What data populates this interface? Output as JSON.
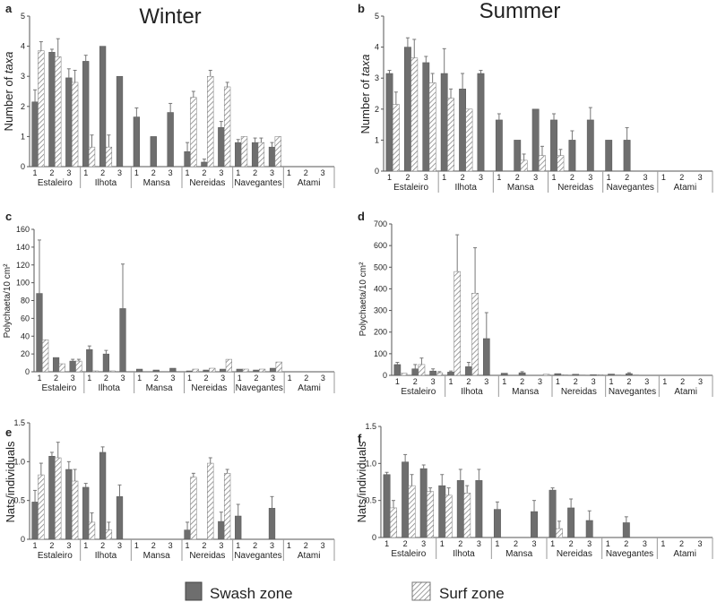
{
  "column_titles": {
    "left": "Winter",
    "right": "Summer"
  },
  "legend": {
    "swash": "Swash zone",
    "surf": "Surf zone"
  },
  "colors": {
    "swash": "#6e6e6e",
    "surf_stroke": "#777777",
    "axis": "#555555"
  },
  "chart_data": [
    {
      "panel": "a",
      "type": "bar",
      "season": "Winter",
      "ylabel": "Number of taxa",
      "ylabel_style": "plain-italic-last",
      "ylim": [
        0,
        5
      ],
      "yticks": [
        0,
        1,
        2,
        3,
        4,
        5
      ],
      "sites": [
        "Estaleiro",
        "Ilhota",
        "Mansa",
        "Nereidas",
        "Navegantes",
        "Atami"
      ],
      "subsites": [
        "1",
        "2",
        "3"
      ],
      "series": [
        {
          "name": "Swash zone",
          "values": [
            [
              2.15,
              3.8,
              2.95
            ],
            [
              3.5,
              4.0,
              3.0
            ],
            [
              1.65,
              1.0,
              1.8
            ],
            [
              0.5,
              0.15,
              1.3
            ],
            [
              0.8,
              0.8,
              0.65
            ],
            [
              0,
              0,
              0
            ]
          ],
          "errors": [
            [
              0.4,
              0.1,
              0.3
            ],
            [
              0.2,
              0,
              0
            ],
            [
              0.3,
              0,
              0.3
            ],
            [
              0.3,
              0.1,
              0.2
            ],
            [
              0.1,
              0.15,
              0.15
            ],
            [
              0,
              0,
              0
            ]
          ]
        },
        {
          "name": "Surf zone",
          "values": [
            [
              3.85,
              3.65,
              2.8
            ],
            [
              0.65,
              0.65,
              0
            ],
            [
              0,
              0,
              0
            ],
            [
              2.3,
              3.0,
              2.65
            ],
            [
              1.0,
              0.8,
              1.0
            ],
            [
              0,
              0,
              0
            ]
          ],
          "errors": [
            [
              0.3,
              0.6,
              0.4
            ],
            [
              0.4,
              0.4,
              0
            ],
            [
              0,
              0,
              0
            ],
            [
              0.2,
              0.2,
              0.15
            ],
            [
              0,
              0.15,
              0
            ],
            [
              0,
              0,
              0
            ]
          ]
        }
      ]
    },
    {
      "panel": "b",
      "type": "bar",
      "season": "Summer",
      "ylabel": "Number of taxa",
      "ylabel_style": "plain-italic-last",
      "ylim": [
        0,
        5
      ],
      "yticks": [
        0,
        1,
        2,
        3,
        4,
        5
      ],
      "sites": [
        "Estaleiro",
        "Ilhota",
        "Mansa",
        "Nereidas",
        "Navegantes",
        "Atami"
      ],
      "subsites": [
        "1",
        "2",
        "3"
      ],
      "series": [
        {
          "name": "Swash zone",
          "values": [
            [
              3.15,
              4.0,
              3.5
            ],
            [
              3.15,
              2.65,
              3.15
            ],
            [
              1.65,
              1.0,
              2.0
            ],
            [
              1.65,
              1.0,
              1.65
            ],
            [
              1.0,
              1.0,
              0
            ],
            [
              0,
              0,
              0
            ]
          ],
          "errors": [
            [
              0.1,
              0.3,
              0.2
            ],
            [
              0.8,
              0.5,
              0.1
            ],
            [
              0.2,
              0,
              0
            ],
            [
              0.2,
              0.3,
              0.4
            ],
            [
              0,
              0.4,
              0
            ],
            [
              0,
              0,
              0
            ]
          ]
        },
        {
          "name": "Surf zone",
          "values": [
            [
              2.15,
              3.65,
              2.85
            ],
            [
              2.35,
              2.0,
              0
            ],
            [
              0,
              0.35,
              0.5
            ],
            [
              0.5,
              0,
              0
            ],
            [
              0,
              0,
              0
            ],
            [
              0,
              0,
              0
            ]
          ],
          "errors": [
            [
              0.4,
              0.6,
              0.3
            ],
            [
              0.3,
              0,
              0
            ],
            [
              0,
              0.2,
              0.3
            ],
            [
              0.2,
              0,
              0
            ],
            [
              0,
              0,
              0
            ],
            [
              0,
              0,
              0
            ]
          ]
        }
      ]
    },
    {
      "panel": "c",
      "type": "bar",
      "season": "Winter",
      "ylabel": "Polychaeta/10 cm²",
      "ylabel_style": "plain",
      "ylim": [
        0,
        160
      ],
      "yticks": [
        0,
        20,
        40,
        60,
        80,
        100,
        120,
        140,
        160
      ],
      "sites": [
        "Estaleiro",
        "Ilhota",
        "Mansa",
        "Nereidas",
        "Navegantes",
        "Atami"
      ],
      "subsites": [
        "1",
        "2",
        "3"
      ],
      "series": [
        {
          "name": "Swash zone",
          "values": [
            [
              88,
              16,
              12
            ],
            [
              25,
              20,
              71
            ],
            [
              3,
              2,
              4
            ],
            [
              1,
              2,
              3
            ],
            [
              3,
              2,
              4
            ],
            [
              0,
              0,
              0
            ]
          ],
          "errors": [
            [
              60,
              0,
              2
            ],
            [
              4,
              4,
              50
            ],
            [
              0,
              0,
              0
            ],
            [
              0,
              0,
              0
            ],
            [
              0,
              0,
              0
            ],
            [
              0,
              0,
              0
            ]
          ]
        },
        {
          "name": "Surf zone",
          "values": [
            [
              36,
              9,
              12
            ],
            [
              1,
              1,
              0
            ],
            [
              0,
              0,
              0
            ],
            [
              3,
              4,
              14
            ],
            [
              3,
              3,
              11
            ],
            [
              0,
              0,
              0
            ]
          ],
          "errors": [
            [
              0,
              0,
              2
            ],
            [
              0,
              0,
              0
            ],
            [
              0,
              0,
              0
            ],
            [
              0,
              0,
              0
            ],
            [
              0,
              0,
              0
            ],
            [
              0,
              0,
              0
            ]
          ]
        }
      ]
    },
    {
      "panel": "d",
      "type": "bar",
      "season": "Summer",
      "ylabel": "Polychaeta/10 cm²",
      "ylabel_style": "plain",
      "ylim": [
        0,
        700
      ],
      "yticks": [
        0,
        100,
        200,
        300,
        400,
        500,
        600,
        700
      ],
      "sites": [
        "Estaleiro",
        "Ilhota",
        "Mansa",
        "Nereidas",
        "Navegantes",
        "Atami"
      ],
      "subsites": [
        "1",
        "2",
        "3"
      ],
      "series": [
        {
          "name": "Swash zone",
          "values": [
            [
              50,
              30,
              20
            ],
            [
              15,
              40,
              170
            ],
            [
              10,
              12,
              0
            ],
            [
              8,
              5,
              3
            ],
            [
              6,
              8,
              0
            ],
            [
              0,
              0,
              0
            ]
          ],
          "errors": [
            [
              10,
              20,
              10
            ],
            [
              5,
              20,
              120
            ],
            [
              0,
              5,
              0
            ],
            [
              0,
              0,
              0
            ],
            [
              0,
              4,
              0
            ],
            [
              0,
              0,
              0
            ]
          ]
        },
        {
          "name": "Surf zone",
          "values": [
            [
              10,
              50,
              12
            ],
            [
              480,
              380,
              0
            ],
            [
              0,
              0,
              5
            ],
            [
              3,
              2,
              3
            ],
            [
              2,
              2,
              0
            ],
            [
              0,
              0,
              0
            ]
          ],
          "errors": [
            [
              0,
              30,
              5
            ],
            [
              170,
              210,
              0
            ],
            [
              0,
              0,
              0
            ],
            [
              0,
              0,
              0
            ],
            [
              0,
              0,
              0
            ],
            [
              0,
              0,
              0
            ]
          ]
        }
      ]
    },
    {
      "panel": "e",
      "type": "bar",
      "season": "Winter",
      "ylabel": "Nats/individuals",
      "ylabel_style": "plain",
      "ylim": [
        0,
        1.5
      ],
      "yticks": [
        0,
        0.5,
        1.0,
        1.5
      ],
      "sites": [
        "Estaleiro",
        "Ilhota",
        "Mansa",
        "Nereidas",
        "Navegantes",
        "Atami"
      ],
      "subsites": [
        "1",
        "2",
        "3"
      ],
      "series": [
        {
          "name": "Swash zone",
          "values": [
            [
              0.48,
              1.07,
              0.9
            ],
            [
              0.67,
              1.12,
              0.55
            ],
            [
              0,
              0,
              0
            ],
            [
              0.12,
              0,
              0.23
            ],
            [
              0.3,
              0,
              0.4
            ],
            [
              0,
              0,
              0
            ]
          ],
          "errors": [
            [
              0.15,
              0.05,
              0.1
            ],
            [
              0.05,
              0.07,
              0.15
            ],
            [
              0,
              0,
              0
            ],
            [
              0.1,
              0,
              0.12
            ],
            [
              0.15,
              0,
              0.15
            ],
            [
              0,
              0,
              0
            ]
          ]
        },
        {
          "name": "Surf zone",
          "values": [
            [
              0.83,
              1.05,
              0.75
            ],
            [
              0.22,
              0.12,
              0
            ],
            [
              0,
              0,
              0
            ],
            [
              0.8,
              0.98,
              0.85
            ],
            [
              0,
              0,
              0
            ],
            [
              0,
              0,
              0
            ]
          ],
          "errors": [
            [
              0.15,
              0.2,
              0.15
            ],
            [
              0.12,
              0.1,
              0
            ],
            [
              0,
              0,
              0
            ],
            [
              0.05,
              0.07,
              0.05
            ],
            [
              0,
              0,
              0
            ],
            [
              0,
              0,
              0
            ]
          ]
        }
      ]
    },
    {
      "panel": "f",
      "type": "bar",
      "season": "Summer",
      "ylabel": "Nats/individuals",
      "ylabel_style": "plain",
      "ylim": [
        0,
        1.5
      ],
      "yticks": [
        0,
        0.5,
        1.0,
        1.5
      ],
      "sites": [
        "Estaleiro",
        "Ilhota",
        "Mansa",
        "Nereidas",
        "Navegantes",
        "Atami"
      ],
      "subsites": [
        "1",
        "2",
        "3"
      ],
      "series": [
        {
          "name": "Swash zone",
          "values": [
            [
              0.85,
              1.02,
              0.93
            ],
            [
              0.7,
              0.77,
              0.77
            ],
            [
              0.38,
              0,
              0.35
            ],
            [
              0.64,
              0.4,
              0.23
            ],
            [
              0,
              0.2,
              0
            ],
            [
              0,
              0,
              0
            ]
          ],
          "errors": [
            [
              0.03,
              0.1,
              0.05
            ],
            [
              0.15,
              0.15,
              0.15
            ],
            [
              0.1,
              0,
              0.15
            ],
            [
              0.03,
              0.12,
              0.13
            ],
            [
              0,
              0.08,
              0
            ],
            [
              0,
              0,
              0
            ]
          ]
        },
        {
          "name": "Surf zone",
          "values": [
            [
              0.4,
              0.7,
              0.62
            ],
            [
              0.57,
              0.6,
              0
            ],
            [
              0,
              0,
              0
            ],
            [
              0.12,
              0,
              0
            ],
            [
              0,
              0,
              0
            ],
            [
              0,
              0,
              0
            ]
          ],
          "errors": [
            [
              0.1,
              0.15,
              0.05
            ],
            [
              0.1,
              0.1,
              0
            ],
            [
              0,
              0,
              0
            ],
            [
              0.1,
              0,
              0
            ],
            [
              0,
              0,
              0
            ],
            [
              0,
              0,
              0
            ]
          ]
        }
      ]
    }
  ]
}
